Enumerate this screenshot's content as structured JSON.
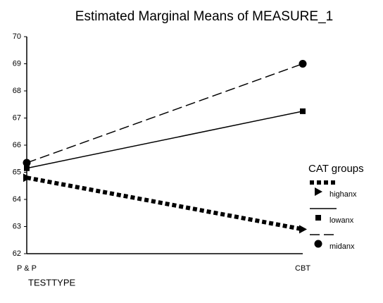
{
  "chart_data": {
    "type": "line",
    "title": "Estimated Marginal Means of MEASURE_1",
    "x_label": "TESTTYPE",
    "legend_title": "CAT groups",
    "categories": [
      "P & P",
      "CBT"
    ],
    "series": [
      {
        "name": "highanx",
        "color": "#000000",
        "style": "dotted",
        "marker": "triangle",
        "values": [
          64.8,
          62.9
        ]
      },
      {
        "name": "lowanx",
        "color": "#000000",
        "style": "solid",
        "marker": "square",
        "values": [
          65.15,
          67.25
        ]
      },
      {
        "name": "midanx",
        "color": "#000000",
        "style": "dashed",
        "marker": "circle",
        "values": [
          65.35,
          69.0
        ]
      }
    ],
    "ylim": [
      62,
      70
    ],
    "yticks": [
      62,
      63,
      64,
      65,
      66,
      67,
      68,
      69,
      70
    ],
    "grid": false,
    "legend": "right"
  }
}
